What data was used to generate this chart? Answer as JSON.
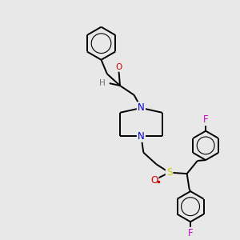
{
  "bg_color": "#e8e8e8",
  "bond_color": "#000000",
  "atom_colors": {
    "N": "#0000cc",
    "O": "#cc0000",
    "F": "#cc00cc",
    "S": "#cccc00",
    "H": "#707070",
    "C": "#000000"
  },
  "bond_width": 1.4,
  "font_size": 7.5,
  "figsize": [
    3.0,
    3.0
  ],
  "dpi": 100
}
